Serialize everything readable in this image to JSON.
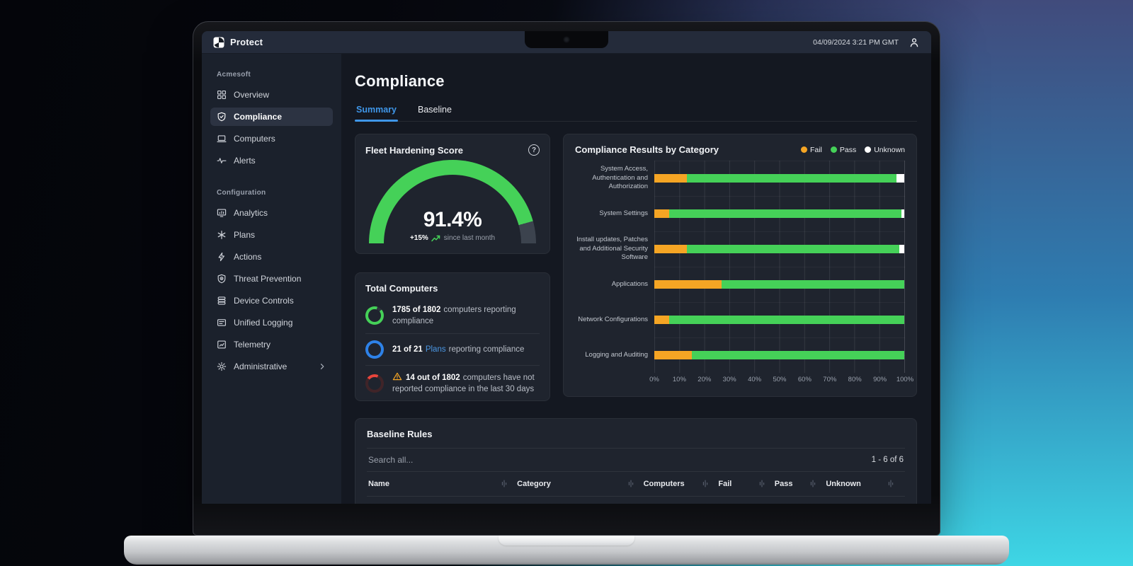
{
  "topbar": {
    "brand": "Protect",
    "datetime": "04/09/2024 3:21 PM GMT"
  },
  "sidebar": {
    "org_label": "Acmesoft",
    "org_items": [
      {
        "label": "Overview",
        "icon": "grid",
        "active": false
      },
      {
        "label": "Compliance",
        "icon": "shield-check",
        "active": true
      },
      {
        "label": "Computers",
        "icon": "laptop",
        "active": false
      },
      {
        "label": "Alerts",
        "icon": "pulse",
        "active": false
      }
    ],
    "config_label": "Configuration",
    "config_items": [
      {
        "label": "Analytics",
        "icon": "monitor-chart",
        "active": false
      },
      {
        "label": "Plans",
        "icon": "asterisk",
        "active": false
      },
      {
        "label": "Actions",
        "icon": "bolt",
        "active": false
      },
      {
        "label": "Threat Prevention",
        "icon": "shield-target",
        "active": false
      },
      {
        "label": "Device Controls",
        "icon": "server-stack",
        "active": false
      },
      {
        "label": "Unified Logging",
        "icon": "list-card",
        "active": false
      },
      {
        "label": "Telemetry",
        "icon": "chart-square",
        "active": false
      },
      {
        "label": "Administrative",
        "icon": "gear",
        "active": false,
        "chevron": true
      }
    ]
  },
  "page": {
    "title": "Compliance",
    "tabs": [
      {
        "label": "Summary",
        "active": true
      },
      {
        "label": "Baseline",
        "active": false
      }
    ]
  },
  "fleet_score": {
    "title": "Fleet Hardening Score",
    "score_value": 91.4,
    "score_display": "91.4%",
    "delta": "+15%",
    "delta_caption": "since last month"
  },
  "total_computers": {
    "title": "Total Computers",
    "rows": [
      {
        "icon": "progress-ring-green",
        "bold": "1785 of 1802",
        "text": "computers reporting compliance"
      },
      {
        "icon": "progress-ring-blue",
        "bold": "21 of 21",
        "link": "Plans",
        "text": "reporting compliance"
      },
      {
        "icon": "progress-ring-red",
        "warning": true,
        "bold": "14 out of 1802",
        "text": "computers have not reported compliance in the last 30 days"
      }
    ]
  },
  "chart_data": {
    "type": "bar",
    "variant": "horizontal-stacked",
    "title": "Compliance Results by Category",
    "categories": [
      "System Access, Authentication and Authorization",
      "System Settings",
      "Install updates, Patches and Additional Security Software",
      "Applications",
      "Network Configurations",
      "Logging and Auditing"
    ],
    "series": [
      {
        "name": "Fail",
        "color": "#F5A524",
        "values": [
          13,
          6,
          13,
          27,
          6,
          15
        ]
      },
      {
        "name": "Pass",
        "color": "#45D158",
        "values": [
          84,
          93,
          85,
          73,
          94,
          85
        ]
      },
      {
        "name": "Unknown",
        "color": "#FFFFFF",
        "values": [
          3,
          1,
          2,
          0,
          0,
          0
        ]
      }
    ],
    "x_ticks": [
      "0%",
      "10%",
      "20%",
      "30%",
      "40%",
      "50%",
      "60%",
      "70%",
      "80%",
      "90%",
      "100%"
    ],
    "xlim": [
      0,
      100
    ],
    "grid": "vertical",
    "legend_position": "top-right"
  },
  "baseline_rules": {
    "title": "Baseline Rules",
    "search_placeholder": "Search all...",
    "result_range": "1 - 6 of 6",
    "columns": [
      "Name",
      "Category",
      "Computers",
      "Fail",
      "Pass",
      "Unknown"
    ]
  },
  "colors": {
    "accent_blue": "#3F96E8",
    "pass_green": "#45D158",
    "fail_orange": "#F5A524",
    "unknown_white": "#FFFFFF",
    "alert_red": "#E8453C"
  }
}
